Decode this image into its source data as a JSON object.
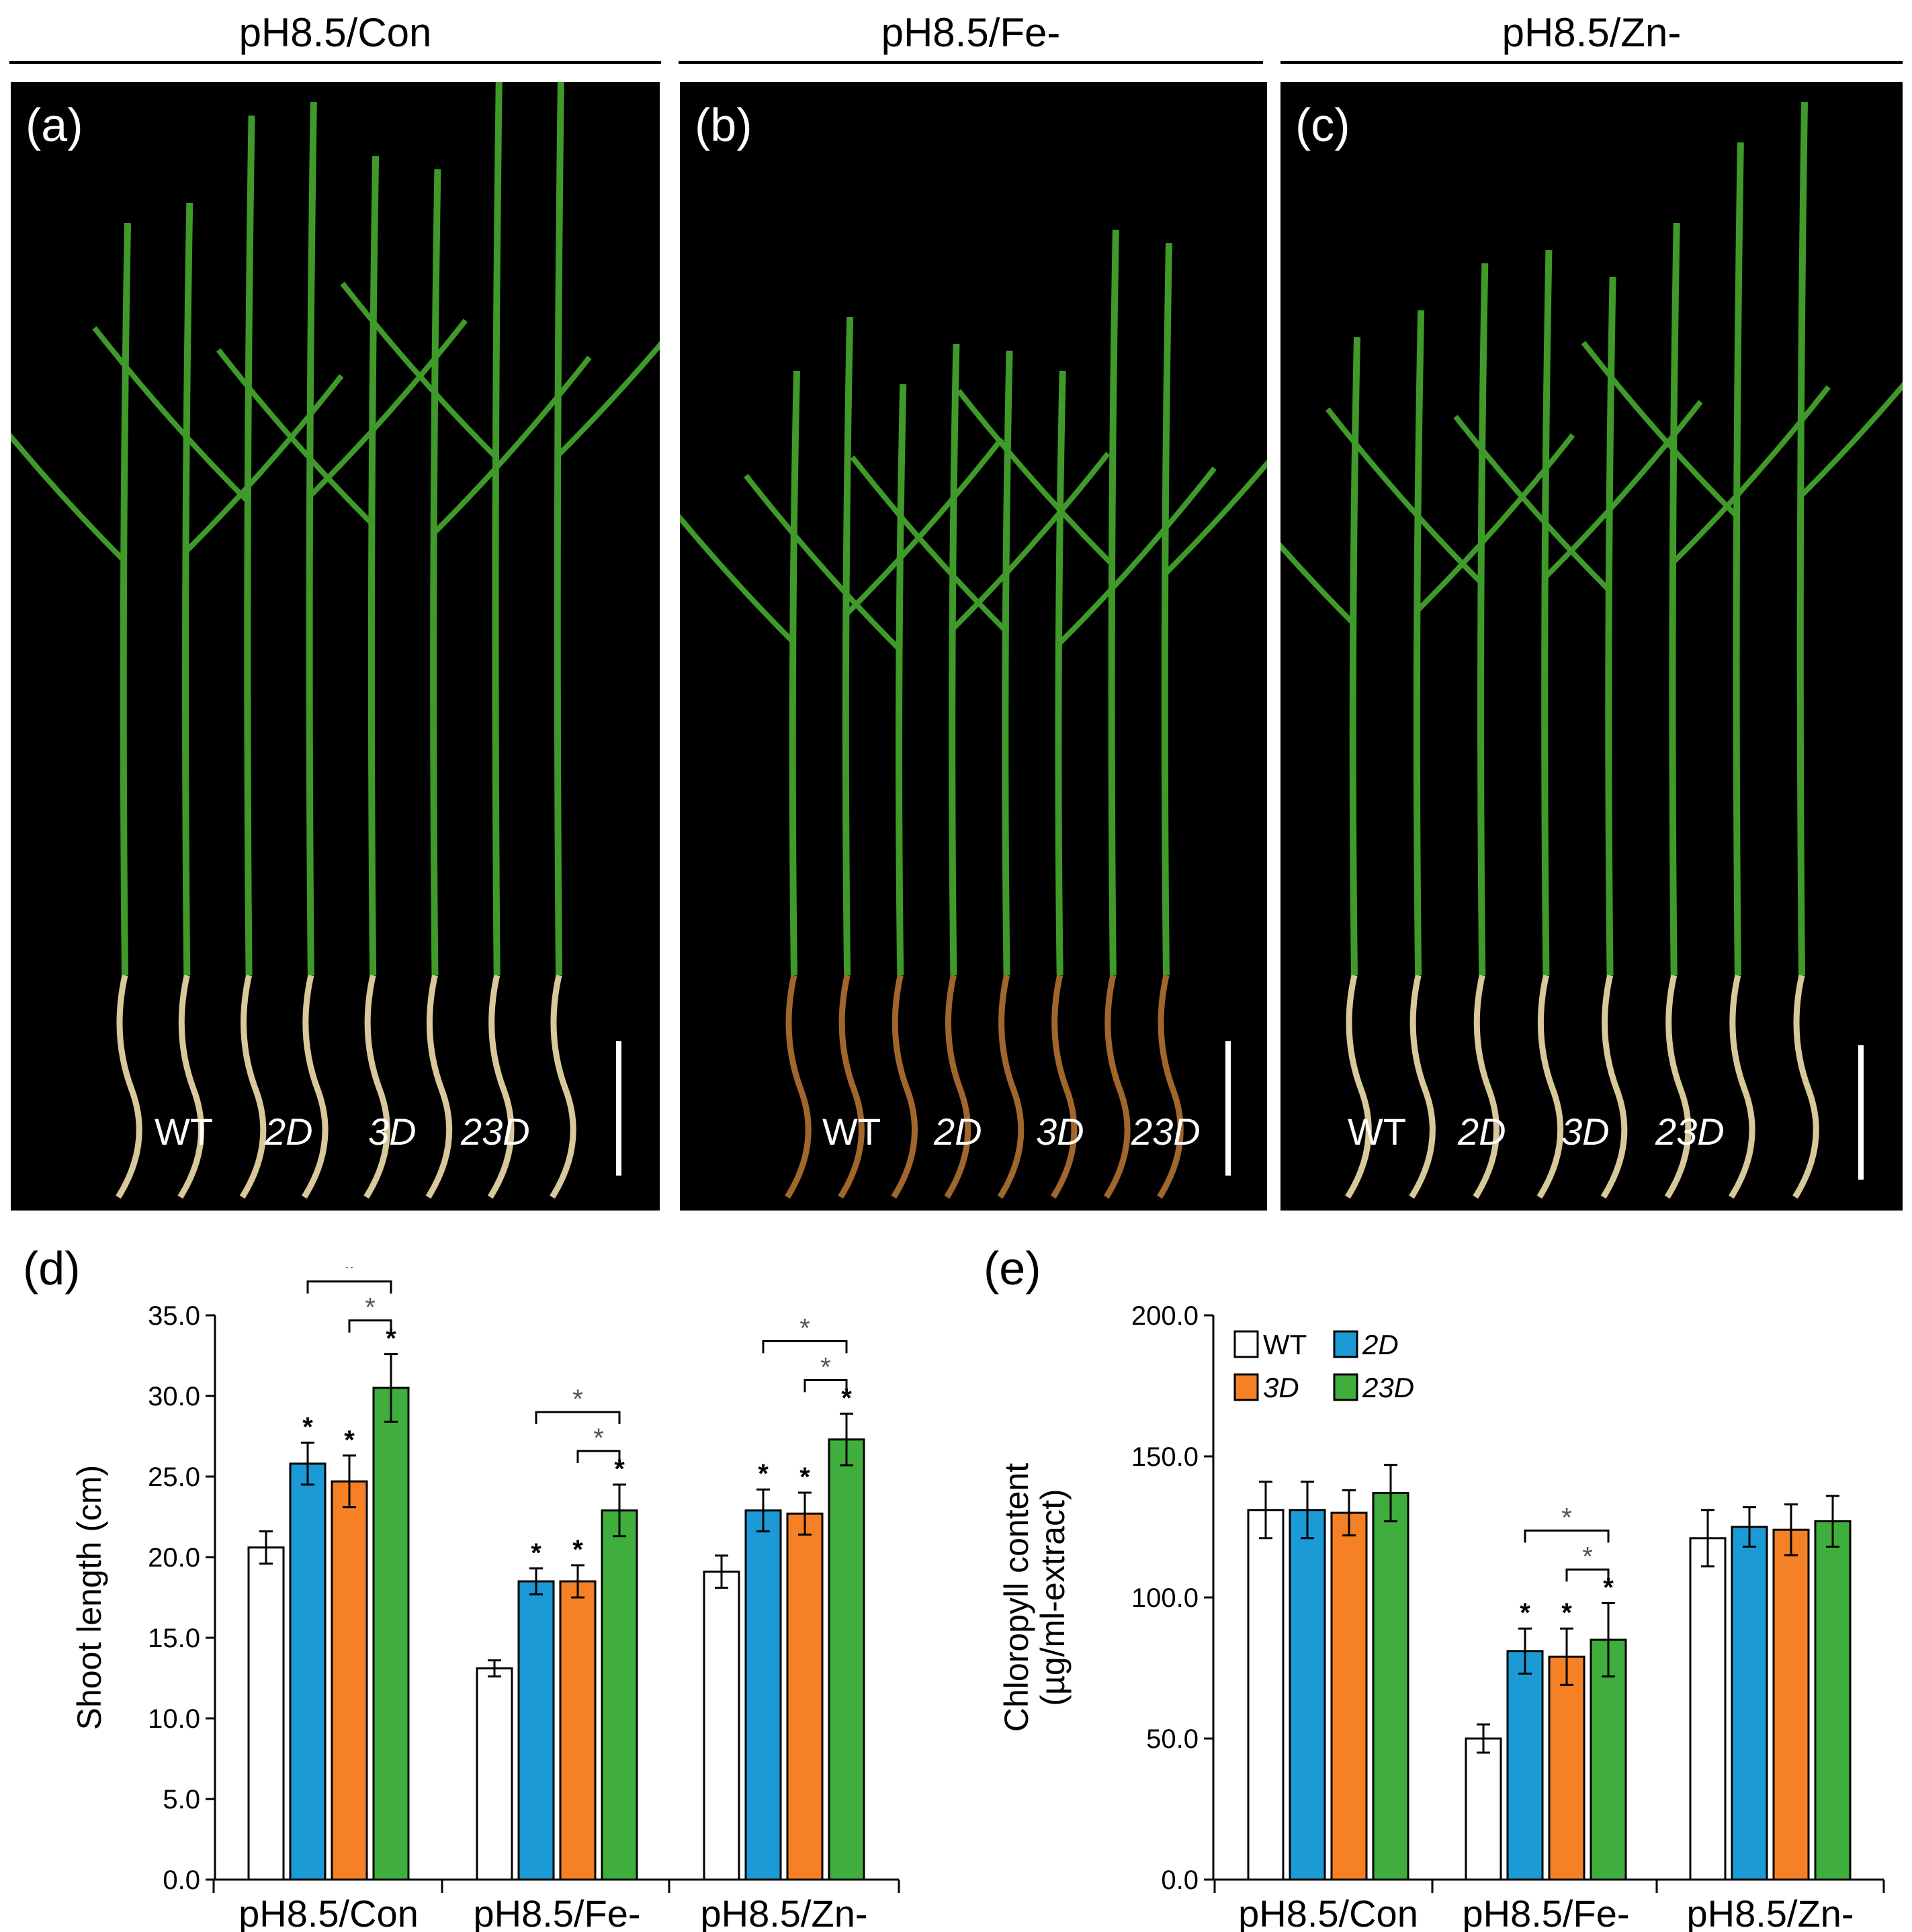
{
  "conditions": [
    "pH8.5/Con",
    "pH8.5/Fe-",
    "pH8.5/Zn-"
  ],
  "photos": [
    {
      "letter": "(a)",
      "genotypes": [
        "WT",
        "2D",
        "3D",
        "23D"
      ]
    },
    {
      "letter": "(b)",
      "genotypes": [
        "WT",
        "2D",
        "3D",
        "23D"
      ]
    },
    {
      "letter": "(c)",
      "genotypes": [
        "WT",
        "2D",
        "3D",
        "23D"
      ]
    }
  ],
  "colors": {
    "WT": "#ffffff",
    "2D": "#1b9ad6",
    "3D": "#f58025",
    "23D": "#3fae3c",
    "leaf": "#3f9a2a",
    "root": "#d8c89a",
    "root_fe": "#a0662c"
  },
  "chart_data": [
    {
      "letter": "(d)",
      "type": "bar",
      "ylabel": "Shoot length (cm)",
      "ylim": [
        0,
        35
      ],
      "yticks": [
        "0.0",
        "5.0",
        "10.0",
        "15.0",
        "20.0",
        "25.0",
        "30.0",
        "35.0"
      ],
      "categories": [
        "pH8.5/Con",
        "pH8.5/Fe-",
        "pH8.5/Zn-"
      ],
      "series": [
        {
          "name": "WT",
          "values": [
            20.6,
            13.1,
            19.1
          ],
          "errors": [
            1.0,
            0.5,
            1.0
          ],
          "stars": [
            false,
            false,
            false
          ]
        },
        {
          "name": "2D",
          "values": [
            25.8,
            18.5,
            22.9
          ],
          "errors": [
            1.3,
            0.8,
            1.3
          ],
          "stars": [
            true,
            true,
            true
          ]
        },
        {
          "name": "3D",
          "values": [
            24.7,
            18.5,
            22.7
          ],
          "errors": [
            1.6,
            1.0,
            1.3
          ],
          "stars": [
            true,
            true,
            true
          ]
        },
        {
          "name": "23D",
          "values": [
            30.5,
            22.9,
            27.3
          ],
          "errors": [
            2.1,
            1.6,
            1.6
          ],
          "stars": [
            true,
            true,
            true
          ]
        }
      ],
      "brackets": [
        {
          "group": 0,
          "from": "2D",
          "to": "23D",
          "label": "*"
        },
        {
          "group": 0,
          "from": "3D",
          "to": "23D",
          "label": "*"
        },
        {
          "group": 1,
          "from": "2D",
          "to": "23D",
          "label": "*"
        },
        {
          "group": 1,
          "from": "3D",
          "to": "23D",
          "label": "*"
        },
        {
          "group": 2,
          "from": "2D",
          "to": "23D",
          "label": "*"
        },
        {
          "group": 2,
          "from": "3D",
          "to": "23D",
          "label": "*"
        }
      ],
      "legend": null
    },
    {
      "letter": "(e)",
      "type": "bar",
      "ylabel": "Chloropyll content",
      "ylabel2": "(µg/ml-extract)",
      "ylim": [
        0,
        200
      ],
      "yticks": [
        "0.0",
        "50.0",
        "100.0",
        "150.0",
        "200.0"
      ],
      "categories": [
        "pH8.5/Con",
        "pH8.5/Fe-",
        "pH8.5/Zn-"
      ],
      "series": [
        {
          "name": "WT",
          "values": [
            131,
            50,
            121
          ],
          "errors": [
            10,
            5,
            10
          ],
          "stars": [
            false,
            false,
            false
          ]
        },
        {
          "name": "2D",
          "values": [
            131,
            81,
            125
          ],
          "errors": [
            10,
            8,
            7
          ],
          "stars": [
            false,
            true,
            false
          ]
        },
        {
          "name": "3D",
          "values": [
            130,
            79,
            124
          ],
          "errors": [
            8,
            10,
            9
          ],
          "stars": [
            false,
            true,
            false
          ]
        },
        {
          "name": "23D",
          "values": [
            137,
            85,
            127
          ],
          "errors": [
            10,
            13,
            9
          ],
          "stars": [
            false,
            true,
            false
          ]
        }
      ],
      "brackets": [
        {
          "group": 1,
          "from": "2D",
          "to": "23D",
          "label": "*"
        },
        {
          "group": 1,
          "from": "3D",
          "to": "23D",
          "label": "*"
        }
      ],
      "legend": {
        "placement": "top-left",
        "items": [
          "WT",
          "2D",
          "3D",
          "23D"
        ]
      }
    }
  ]
}
